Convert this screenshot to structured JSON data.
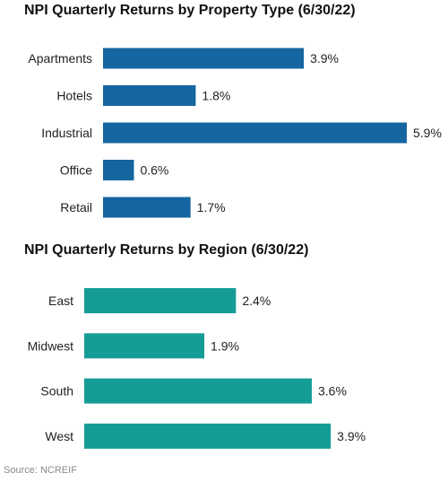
{
  "colors": {
    "property_bars": "#1565a0",
    "region_bars": "#169c97"
  },
  "source_note": "Source: NCREIF",
  "chart_data": [
    {
      "type": "bar",
      "orientation": "horizontal",
      "title": "NPI Quarterly Returns by Property Type (6/30/22)",
      "categories": [
        "Apartments",
        "Hotels",
        "Industrial",
        "Office",
        "Retail"
      ],
      "values": [
        3.9,
        1.8,
        5.9,
        0.6,
        1.7
      ],
      "value_labels": [
        "3.9%",
        "1.8%",
        "5.9%",
        "0.6%",
        "1.7%"
      ],
      "unit": "%",
      "xlim": [
        0,
        5.9
      ],
      "grid": false,
      "legend": "none",
      "color": "#1565a0"
    },
    {
      "type": "bar",
      "orientation": "horizontal",
      "title": "NPI Quarterly Returns by Region (6/30/22)",
      "categories": [
        "East",
        "Midwest",
        "South",
        "West"
      ],
      "values": [
        2.4,
        1.9,
        3.6,
        3.9
      ],
      "value_labels": [
        "2.4%",
        "1.9%",
        "3.6%",
        "3.9%"
      ],
      "unit": "%",
      "xlim": [
        0,
        5.4
      ],
      "grid": false,
      "legend": "none",
      "color": "#169c97"
    }
  ]
}
